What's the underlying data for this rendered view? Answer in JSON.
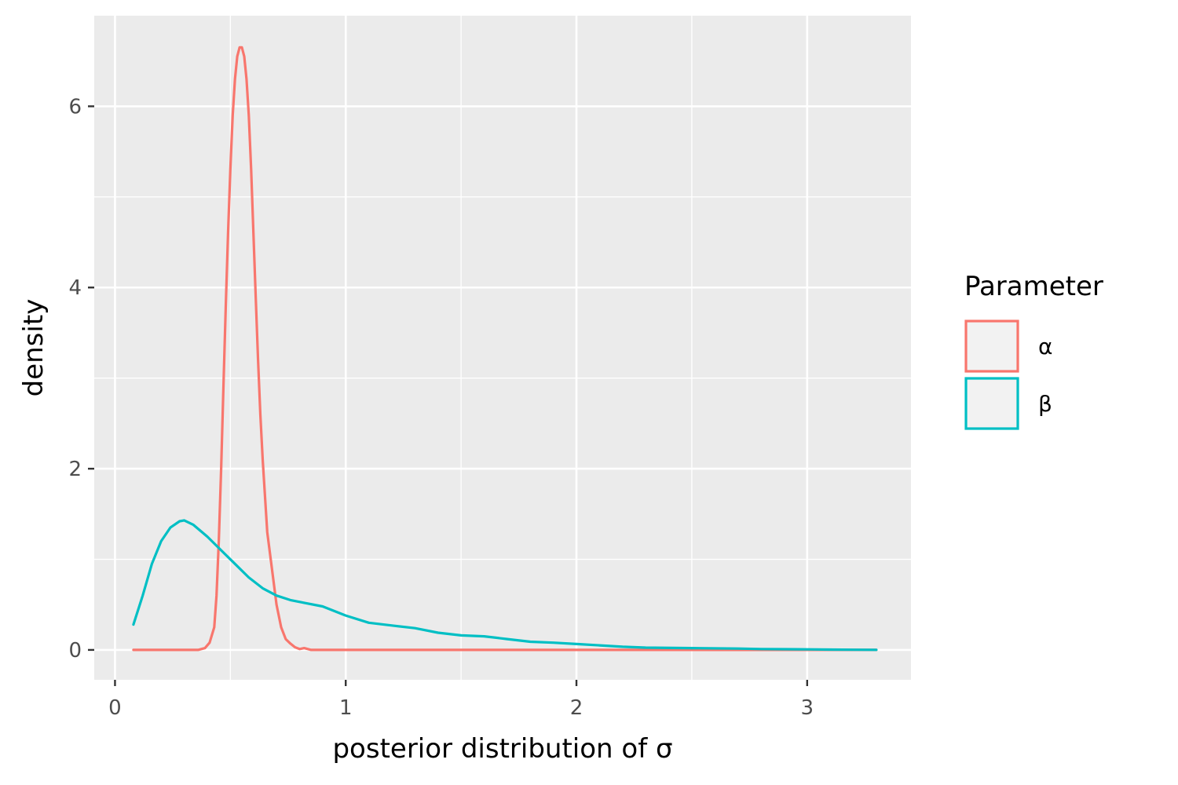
{
  "chart_data": {
    "type": "line",
    "title": "",
    "xlabel": "posterior distribution of σ",
    "ylabel": "density",
    "xlim": [
      -0.09,
      3.45
    ],
    "ylim": [
      -0.33,
      7.0
    ],
    "x_ticks": [
      0,
      1,
      2,
      3
    ],
    "x_tick_labels": [
      "0",
      "1",
      "2",
      "3"
    ],
    "y_ticks": [
      0,
      2,
      4,
      6
    ],
    "y_tick_labels": [
      "0",
      "2",
      "4",
      "6"
    ],
    "x_minor": [
      0.5,
      1.5,
      2.5
    ],
    "y_minor": [
      1,
      3,
      5
    ],
    "grid": true,
    "panel_background": "#ebebeb",
    "legend": {
      "title": "Parameter",
      "placement": "right",
      "entries": [
        "α",
        "β"
      ]
    },
    "series": [
      {
        "name": "α",
        "color": "#f8766d",
        "x": [
          0.08,
          0.2,
          0.3,
          0.36,
          0.39,
          0.41,
          0.43,
          0.44,
          0.45,
          0.46,
          0.47,
          0.48,
          0.49,
          0.5,
          0.51,
          0.52,
          0.53,
          0.54,
          0.55,
          0.56,
          0.57,
          0.58,
          0.59,
          0.6,
          0.61,
          0.62,
          0.63,
          0.64,
          0.65,
          0.66,
          0.68,
          0.7,
          0.72,
          0.74,
          0.76,
          0.78,
          0.8,
          0.82,
          0.85,
          1.0,
          1.5,
          2.0,
          2.5,
          3.0,
          3.3
        ],
        "y": [
          0.0,
          0.0,
          0.0,
          0.0,
          0.02,
          0.08,
          0.25,
          0.6,
          1.2,
          2.0,
          2.9,
          3.8,
          4.6,
          5.3,
          5.9,
          6.3,
          6.55,
          6.65,
          6.65,
          6.55,
          6.3,
          5.9,
          5.3,
          4.6,
          3.9,
          3.2,
          2.6,
          2.1,
          1.7,
          1.3,
          0.9,
          0.5,
          0.25,
          0.12,
          0.07,
          0.03,
          0.01,
          0.02,
          0.0,
          0.0,
          0.0,
          0.0,
          0.0,
          0.0,
          0.0
        ]
      },
      {
        "name": "β",
        "color": "#00bfc4",
        "x": [
          0.08,
          0.12,
          0.16,
          0.2,
          0.24,
          0.28,
          0.3,
          0.34,
          0.4,
          0.46,
          0.52,
          0.58,
          0.64,
          0.7,
          0.76,
          0.82,
          0.9,
          1.0,
          1.1,
          1.2,
          1.3,
          1.4,
          1.5,
          1.6,
          1.7,
          1.8,
          1.9,
          2.0,
          2.1,
          2.2,
          2.3,
          2.5,
          2.7,
          2.8,
          2.9,
          3.0,
          3.1,
          3.2,
          3.3
        ],
        "y": [
          0.28,
          0.6,
          0.95,
          1.2,
          1.35,
          1.42,
          1.43,
          1.38,
          1.25,
          1.1,
          0.95,
          0.8,
          0.68,
          0.6,
          0.55,
          0.52,
          0.48,
          0.38,
          0.3,
          0.27,
          0.24,
          0.19,
          0.16,
          0.15,
          0.12,
          0.09,
          0.08,
          0.065,
          0.05,
          0.035,
          0.025,
          0.02,
          0.015,
          0.01,
          0.008,
          0.006,
          0.004,
          0.002,
          0.001
        ]
      }
    ]
  }
}
